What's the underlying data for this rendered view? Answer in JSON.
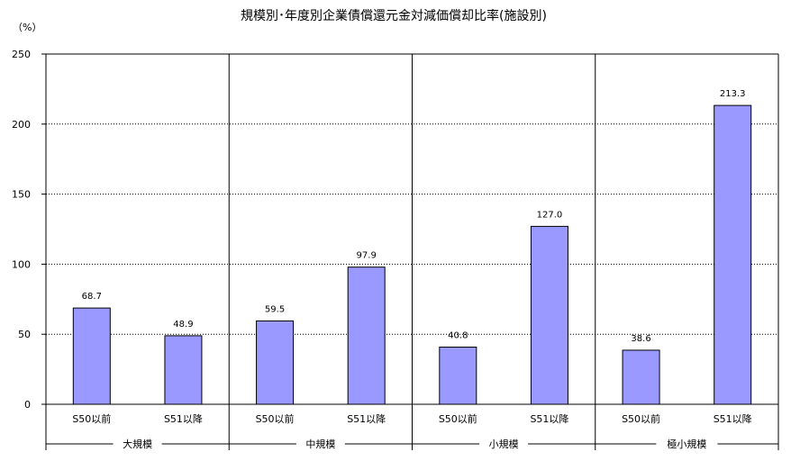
{
  "chart_data": {
    "type": "bar",
    "title": "規模別･年度別企業債償還元金対減価償却比率(施設別)",
    "ylabel": "（%）",
    "ylim": [
      0,
      250
    ],
    "yticks": [
      0,
      50,
      100,
      150,
      200,
      250
    ],
    "grid": true,
    "legend": "none",
    "bar_color": "#9999ff",
    "groups": [
      {
        "name": "大規模",
        "categories": [
          "S50以前",
          "S51以降"
        ],
        "values": [
          68.7,
          48.9
        ],
        "labels": [
          "68.7",
          "48.9"
        ]
      },
      {
        "name": "中規模",
        "categories": [
          "S50以前",
          "S51以降"
        ],
        "values": [
          59.5,
          97.9
        ],
        "labels": [
          "59.5",
          "97.9"
        ]
      },
      {
        "name": "小規模",
        "categories": [
          "S50以前",
          "S51以降"
        ],
        "values": [
          40.8,
          127.0
        ],
        "labels": [
          "40.8",
          "127.0"
        ]
      },
      {
        "name": "極小規模",
        "categories": [
          "S50以前",
          "S51以降"
        ],
        "values": [
          38.6,
          213.3
        ],
        "labels": [
          "38.6",
          "213.3"
        ]
      }
    ]
  }
}
